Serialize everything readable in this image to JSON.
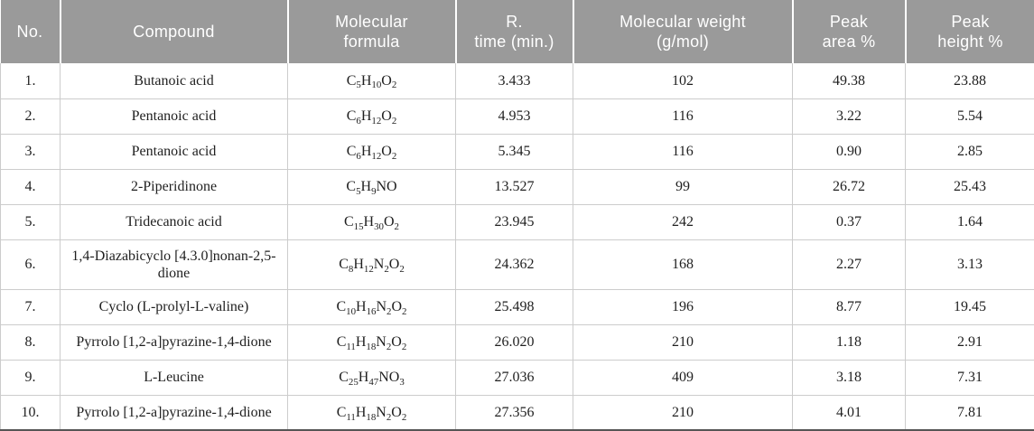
{
  "colors": {
    "header_bg": "#9a9a9a",
    "header_text": "#ffffff",
    "body_text": "#1f1f1f",
    "grid_line": "#cccccc",
    "bottom_border": "#555555"
  },
  "table": {
    "columns": [
      {
        "key": "no",
        "label": "No."
      },
      {
        "key": "compound",
        "label": "Compound"
      },
      {
        "key": "formula",
        "label": "Molecular\nformula"
      },
      {
        "key": "r_time",
        "label": "R.\ntime (min.)"
      },
      {
        "key": "mol_weight",
        "label": "Molecular weight\n(g/mol)"
      },
      {
        "key": "peak_area",
        "label": "Peak\narea %"
      },
      {
        "key": "peak_height",
        "label": "Peak\nheight %"
      }
    ],
    "rows": [
      {
        "no": "1.",
        "compound": "Butanoic acid",
        "formula": "C5H10O2",
        "r_time": "3.433",
        "mol_weight": "102",
        "peak_area": "49.38",
        "peak_height": "23.88"
      },
      {
        "no": "2.",
        "compound": "Pentanoic acid",
        "formula": "C6H12O2",
        "r_time": "4.953",
        "mol_weight": "116",
        "peak_area": "3.22",
        "peak_height": "5.54"
      },
      {
        "no": "3.",
        "compound": "Pentanoic acid",
        "formula": "C6H12O2",
        "r_time": "5.345",
        "mol_weight": "116",
        "peak_area": "0.90",
        "peak_height": "2.85"
      },
      {
        "no": "4.",
        "compound": "2-Piperidinone",
        "formula": "C5H9NO",
        "r_time": "13.527",
        "mol_weight": "99",
        "peak_area": "26.72",
        "peak_height": "25.43"
      },
      {
        "no": "5.",
        "compound": "Tridecanoic acid",
        "formula": "C15H30O2",
        "r_time": "23.945",
        "mol_weight": "242",
        "peak_area": "0.37",
        "peak_height": "1.64"
      },
      {
        "no": "6.",
        "compound": "1,4-Diazabicyclo [4.3.0]nonan-2,5-dione",
        "formula": "C8H12N2O2",
        "r_time": "24.362",
        "mol_weight": "168",
        "peak_area": "2.27",
        "peak_height": "3.13"
      },
      {
        "no": "7.",
        "compound": "Cyclo (L-prolyl-L-valine)",
        "formula": "C10H16N2O2",
        "r_time": "25.498",
        "mol_weight": "196",
        "peak_area": "8.77",
        "peak_height": "19.45"
      },
      {
        "no": "8.",
        "compound": "Pyrrolo [1,2-a]pyrazine-1,4-dione",
        "formula": "C11H18N2O2",
        "r_time": "26.020",
        "mol_weight": "210",
        "peak_area": "1.18",
        "peak_height": "2.91"
      },
      {
        "no": "9.",
        "compound": "L-Leucine",
        "formula": "C25H47NO3",
        "r_time": "27.036",
        "mol_weight": "409",
        "peak_area": "3.18",
        "peak_height": "7.31"
      },
      {
        "no": "10.",
        "compound": "Pyrrolo [1,2-a]pyrazine-1,4-dione",
        "formula": "C11H18N2O2",
        "r_time": "27.356",
        "mol_weight": "210",
        "peak_area": "4.01",
        "peak_height": "7.81"
      }
    ]
  },
  "chart_data": {
    "type": "table",
    "columns": [
      "No.",
      "Compound",
      "Molecular formula",
      "R. time (min.)",
      "Molecular weight (g/mol)",
      "Peak area %",
      "Peak height %"
    ],
    "rows": [
      [
        "1.",
        "Butanoic acid",
        "C5H10O2",
        "3.433",
        "102",
        "49.38",
        "23.88"
      ],
      [
        "2.",
        "Pentanoic acid",
        "C6H12O2",
        "4.953",
        "116",
        "3.22",
        "5.54"
      ],
      [
        "3.",
        "Pentanoic acid",
        "C6H12O2",
        "5.345",
        "116",
        "0.90",
        "2.85"
      ],
      [
        "4.",
        "2-Piperidinone",
        "C5H9NO",
        "13.527",
        "99",
        "26.72",
        "25.43"
      ],
      [
        "5.",
        "Tridecanoic acid",
        "C15H30O2",
        "23.945",
        "242",
        "0.37",
        "1.64"
      ],
      [
        "6.",
        "1,4-Diazabicyclo [4.3.0]nonan-2,5-dione",
        "C8H12N2O2",
        "24.362",
        "168",
        "2.27",
        "3.13"
      ],
      [
        "7.",
        "Cyclo (L-prolyl-L-valine)",
        "C10H16N2O2",
        "25.498",
        "196",
        "8.77",
        "19.45"
      ],
      [
        "8.",
        "Pyrrolo [1,2-a]pyrazine-1,4-dione",
        "C11H18N2O2",
        "26.020",
        "210",
        "1.18",
        "2.91"
      ],
      [
        "9.",
        "L-Leucine",
        "C25H47NO3",
        "27.036",
        "409",
        "3.18",
        "7.31"
      ],
      [
        "10.",
        "Pyrrolo [1,2-a]pyrazine-1,4-dione",
        "C11H18N2O2",
        "27.356",
        "210",
        "4.01",
        "7.81"
      ]
    ]
  }
}
